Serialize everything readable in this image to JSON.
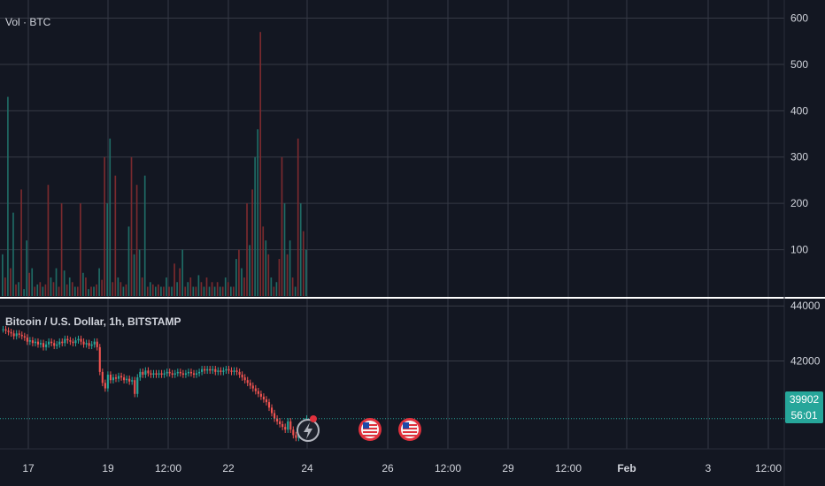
{
  "colors": {
    "background": "#131722",
    "grid": "#363a45",
    "axis_text": "#d1d4dc",
    "separator": "#ffffff",
    "up": "#26a69a",
    "down": "#ef5350",
    "vol_up": "#1f6b65",
    "vol_down": "#7a2a2e",
    "event_red": "#e0313d"
  },
  "volume_panel": {
    "legend": "Vol · BTC",
    "ticks": [
      "100",
      "200",
      "300",
      "400",
      "500",
      "600"
    ]
  },
  "price_panel": {
    "legend": "Bitcoin / U.S. Dollar, 1h, BITSTAMP",
    "ticks": [
      "42000",
      "44000"
    ],
    "last_price": "39902",
    "countdown": "56:01"
  },
  "time_axis": [
    "17",
    "19",
    "12:00",
    "22",
    "24",
    "26",
    "12:00",
    "29",
    "12:00",
    "Feb",
    "3",
    "12:00"
  ],
  "events": [
    {
      "icon": "lightning-icon"
    },
    {
      "icon": "us-flag-icon"
    },
    {
      "icon": "us-flag-icon"
    }
  ],
  "chart_data": [
    {
      "type": "bar",
      "title": "Vol · BTC",
      "ylim": [
        0,
        620
      ],
      "grid": true,
      "values": [
        90,
        40,
        430,
        60,
        180,
        25,
        30,
        230,
        15,
        120,
        50,
        60,
        20,
        25,
        30,
        20,
        25,
        240,
        40,
        30,
        60,
        20,
        200,
        55,
        25,
        40,
        30,
        20,
        20,
        200,
        50,
        40,
        15,
        20,
        20,
        25,
        60,
        35,
        300,
        200,
        340,
        30,
        260,
        40,
        30,
        20,
        25,
        150,
        300,
        90,
        240,
        100,
        40,
        260,
        20,
        30,
        25,
        20,
        25,
        20,
        20,
        40,
        20,
        20,
        70,
        30,
        60,
        100,
        20,
        30,
        40,
        20,
        20,
        45,
        30,
        20,
        40,
        20,
        30,
        20,
        30,
        20,
        20,
        40,
        30,
        20,
        20,
        80,
        100,
        60,
        40,
        200,
        110,
        230,
        300,
        360,
        570,
        150,
        120,
        90,
        40,
        20,
        30,
        80,
        300,
        200,
        90,
        120,
        40,
        20,
        340,
        200,
        140,
        100
      ],
      "up": [
        1,
        0,
        1,
        0,
        1,
        0,
        1,
        0,
        1,
        1,
        0,
        1,
        0,
        1,
        0,
        1,
        0,
        0,
        1,
        0,
        1,
        0,
        0,
        1,
        0,
        1,
        0,
        1,
        0,
        0,
        1,
        0,
        1,
        0,
        1,
        0,
        1,
        0,
        0,
        1,
        1,
        0,
        0,
        1,
        0,
        1,
        0,
        1,
        0,
        1,
        0,
        1,
        0,
        1,
        0,
        1,
        0,
        1,
        0,
        1,
        0,
        1,
        0,
        1,
        0,
        1,
        0,
        1,
        0,
        1,
        0,
        1,
        0,
        1,
        0,
        1,
        0,
        1,
        0,
        1,
        0,
        1,
        0,
        1,
        0,
        1,
        0,
        1,
        0,
        1,
        0,
        0,
        1,
        0,
        1,
        1,
        0,
        0,
        1,
        0,
        1,
        0,
        1,
        0,
        0,
        1,
        0,
        1,
        0,
        1,
        0,
        1,
        0,
        1
      ]
    },
    {
      "type": "line",
      "title": "Bitcoin / U.S. Dollar, 1h, BITSTAMP",
      "ylim": [
        38800,
        44200
      ],
      "grid": true,
      "values": [
        43150,
        43100,
        43050,
        43000,
        42900,
        43000,
        42950,
        42900,
        42850,
        42700,
        42750,
        42650,
        42700,
        42600,
        42650,
        42500,
        42600,
        42700,
        42650,
        42550,
        42600,
        42700,
        42650,
        42800,
        42750,
        42700,
        42650,
        42750,
        42800,
        42700,
        42600,
        42650,
        42550,
        42600,
        42700,
        42500,
        41600,
        41200,
        41000,
        41500,
        41300,
        41400,
        41350,
        41450,
        41400,
        41300,
        41350,
        41250,
        41300,
        40800,
        41400,
        41600,
        41500,
        41650,
        41550,
        41500,
        41550,
        41500,
        41550,
        41500,
        41550,
        41600,
        41550,
        41500,
        41550,
        41600,
        41550,
        41500,
        41550,
        41600,
        41550,
        41500,
        41550,
        41600,
        41700,
        41650,
        41700,
        41650,
        41700,
        41600,
        41650,
        41600,
        41650,
        41700,
        41650,
        41600,
        41650,
        41600,
        41500,
        41400,
        41300,
        41200,
        41100,
        41000,
        40900,
        40800,
        40700,
        40600,
        40500,
        40300,
        40100,
        39900,
        39800,
        39700,
        39600,
        39500,
        39800,
        39500,
        39300,
        39200,
        39500,
        39700,
        39800,
        39902
      ]
    }
  ]
}
